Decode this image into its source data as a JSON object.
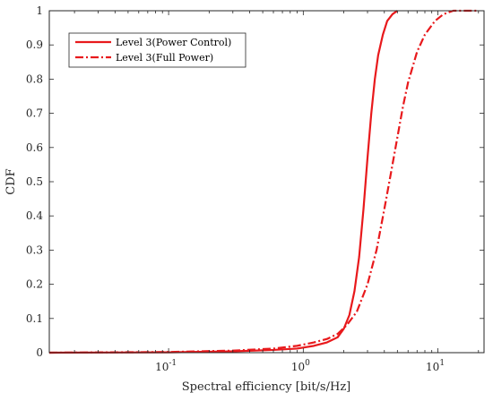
{
  "chart_data": {
    "type": "line",
    "xlabel": "Spectral efficiency [bit/s/Hz]",
    "ylabel": "CDF",
    "x_scale": "log",
    "xlim": [
      0.013,
      22
    ],
    "ylim": [
      0,
      1
    ],
    "grid": false,
    "legend_position": "top-left",
    "x_ticks": [
      {
        "value": 0.1,
        "base": "10",
        "exp": "-1"
      },
      {
        "value": 1,
        "base": "10",
        "exp": "0"
      },
      {
        "value": 10,
        "base": "10",
        "exp": "1"
      }
    ],
    "y_ticks": [
      "0",
      "0.1",
      "0.2",
      "0.3",
      "0.4",
      "0.5",
      "0.6",
      "0.7",
      "0.8",
      "0.9",
      "1"
    ],
    "series": [
      {
        "name": "Level 3(Power Control)",
        "style": "solid",
        "color": "#e8191c",
        "points": [
          [
            0.013,
            0.0
          ],
          [
            0.1,
            0.001
          ],
          [
            0.3,
            0.004
          ],
          [
            0.6,
            0.008
          ],
          [
            0.9,
            0.012
          ],
          [
            1.2,
            0.02
          ],
          [
            1.5,
            0.03
          ],
          [
            1.8,
            0.045
          ],
          [
            2.0,
            0.07
          ],
          [
            2.2,
            0.11
          ],
          [
            2.4,
            0.18
          ],
          [
            2.6,
            0.28
          ],
          [
            2.8,
            0.42
          ],
          [
            3.0,
            0.57
          ],
          [
            3.2,
            0.7
          ],
          [
            3.4,
            0.8
          ],
          [
            3.6,
            0.87
          ],
          [
            3.9,
            0.93
          ],
          [
            4.2,
            0.97
          ],
          [
            4.6,
            0.99
          ],
          [
            5.0,
            1.0
          ]
        ]
      },
      {
        "name": "Level 3(Full Power)",
        "style": "dashdot",
        "color": "#e8191c",
        "points": [
          [
            0.013,
            0.0
          ],
          [
            0.1,
            0.002
          ],
          [
            0.3,
            0.006
          ],
          [
            0.6,
            0.012
          ],
          [
            0.9,
            0.02
          ],
          [
            1.2,
            0.03
          ],
          [
            1.5,
            0.04
          ],
          [
            1.8,
            0.055
          ],
          [
            2.1,
            0.08
          ],
          [
            2.5,
            0.12
          ],
          [
            3.0,
            0.2
          ],
          [
            3.5,
            0.3
          ],
          [
            4.0,
            0.42
          ],
          [
            4.5,
            0.53
          ],
          [
            5.0,
            0.63
          ],
          [
            5.5,
            0.72
          ],
          [
            6.0,
            0.79
          ],
          [
            7.0,
            0.88
          ],
          [
            8.0,
            0.93
          ],
          [
            9.5,
            0.97
          ],
          [
            11.0,
            0.99
          ],
          [
            13.0,
            1.0
          ],
          [
            20.0,
            1.0
          ]
        ]
      }
    ]
  },
  "colors": {
    "series": "#e8191c",
    "axes": "#262626",
    "background": "#ffffff"
  }
}
